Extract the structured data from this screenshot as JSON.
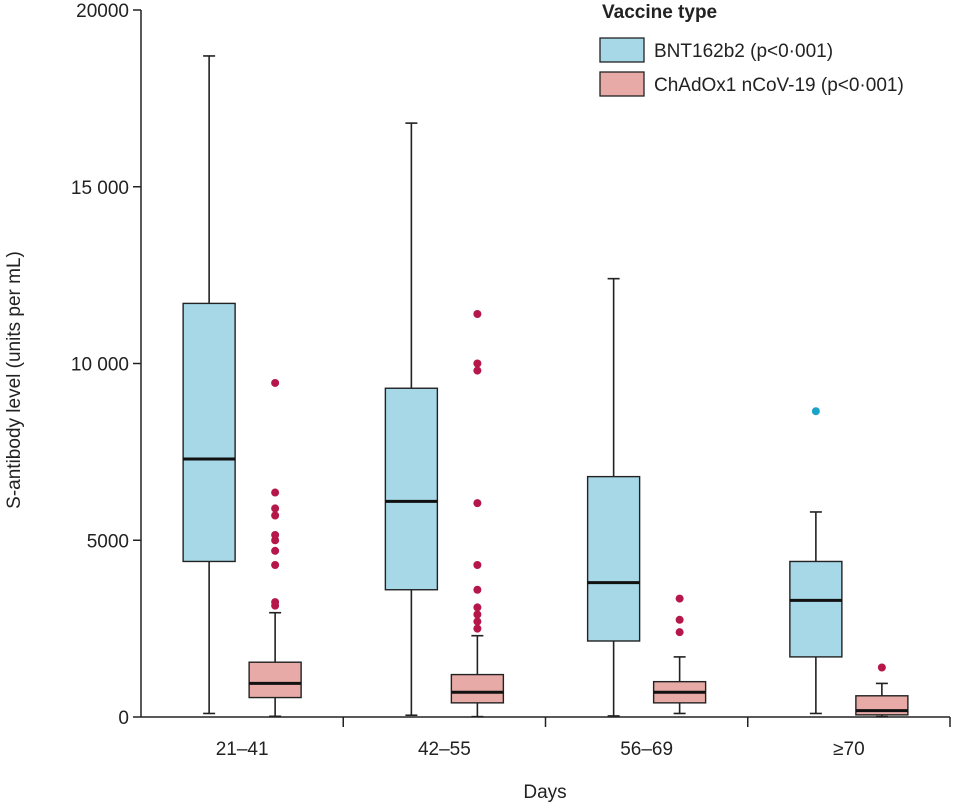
{
  "chart_data": {
    "type": "boxplot",
    "xlabel": "Days",
    "ylabel": "S-antibody level (units per mL)",
    "ylim": [
      0,
      20000
    ],
    "yticks": [
      "0",
      "5000",
      "10 000",
      "15 000",
      "20000"
    ],
    "ytick_values": [
      0,
      5000,
      10000,
      15000,
      20000
    ],
    "categories": [
      "21–41",
      "42–55",
      "56–69",
      "≥70"
    ],
    "legend": {
      "title": "Vaccine type",
      "placement": "top-right",
      "entries": [
        "BNT162b2 (p<0·001)",
        "ChAdOx1 nCoV-19 (p<0·001)"
      ]
    },
    "series": [
      {
        "name": "BNT162b2 (p<0·001)",
        "color": "#a6d8e8",
        "outlier_color": "#1aa3c9",
        "boxes": [
          {
            "whisker_low": 100,
            "q1": 4400,
            "median": 7300,
            "q3": 11700,
            "whisker_high": 18700,
            "outliers": []
          },
          {
            "whisker_low": 50,
            "q1": 3600,
            "median": 6100,
            "q3": 9300,
            "whisker_high": 16800,
            "outliers": []
          },
          {
            "whisker_low": 30,
            "q1": 2150,
            "median": 3800,
            "q3": 6800,
            "whisker_high": 12400,
            "outliers": []
          },
          {
            "whisker_low": 100,
            "q1": 1700,
            "median": 3300,
            "q3": 4400,
            "whisker_high": 5800,
            "outliers": [
              8650
            ]
          }
        ]
      },
      {
        "name": "ChAdOx1 nCoV-19 (p<0·001)",
        "color": "#e8aaa6",
        "outlier_color": "#b5174a",
        "boxes": [
          {
            "whisker_low": 20,
            "q1": 550,
            "median": 950,
            "q3": 1550,
            "whisker_high": 2950,
            "outliers": [
              3150,
              3250,
              4300,
              4700,
              5000,
              5150,
              5700,
              5900,
              6350,
              9450
            ]
          },
          {
            "whisker_low": 10,
            "q1": 400,
            "median": 700,
            "q3": 1200,
            "whisker_high": 2300,
            "outliers": [
              2500,
              2700,
              2900,
              3100,
              3600,
              4300,
              6050,
              9800,
              10000,
              11400
            ]
          },
          {
            "whisker_low": 100,
            "q1": 400,
            "median": 700,
            "q3": 1000,
            "whisker_high": 1700,
            "outliers": [
              2400,
              2750,
              3350
            ]
          },
          {
            "whisker_low": 10,
            "q1": 60,
            "median": 180,
            "q3": 600,
            "whisker_high": 950,
            "outliers": [
              1400
            ]
          }
        ]
      }
    ]
  }
}
